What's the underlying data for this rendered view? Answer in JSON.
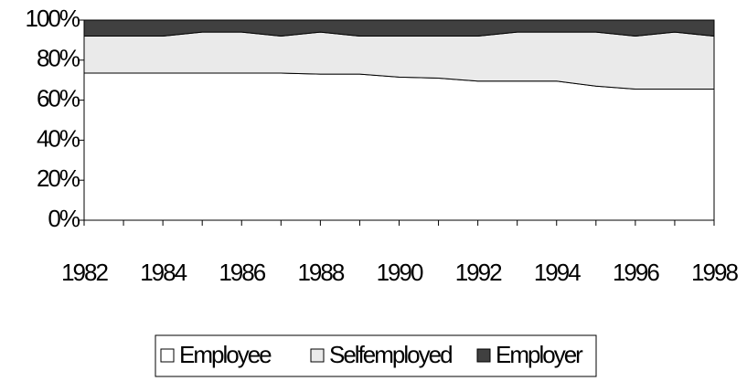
{
  "chart_data": {
    "type": "area",
    "stacked": true,
    "x": [
      1982,
      1983,
      1984,
      1985,
      1986,
      1987,
      1988,
      1989,
      1990,
      1991,
      1992,
      1993,
      1994,
      1995,
      1996,
      1997,
      1998
    ],
    "xlim": [
      1982,
      1998
    ],
    "xticks": [
      1982,
      1984,
      1986,
      1988,
      1990,
      1992,
      1994,
      1996,
      1998
    ],
    "ylim": [
      0,
      100
    ],
    "yticks": [
      {
        "value": 0,
        "label": "0%"
      },
      {
        "value": 20,
        "label": "20%"
      },
      {
        "value": 40,
        "label": "40%"
      },
      {
        "value": 60,
        "label": "60%"
      },
      {
        "value": 80,
        "label": "80%"
      },
      {
        "value": 100,
        "label": "100%"
      }
    ],
    "series": [
      {
        "name": "Employee",
        "color": "#ffffff",
        "values": [
          73.5,
          73.5,
          73.5,
          73.5,
          73.5,
          73.5,
          73,
          73,
          71.5,
          71,
          69.5,
          69.5,
          69.5,
          67,
          65.5,
          65.5,
          65.5
        ]
      },
      {
        "name": "Selfemployed",
        "color": "#eaeaea",
        "values": [
          18.5,
          18.5,
          18.5,
          20.5,
          20.5,
          18.5,
          21,
          19,
          20.5,
          21,
          22.5,
          24.5,
          24.5,
          27,
          26.5,
          28.5,
          26.5
        ]
      },
      {
        "name": "Employer",
        "color": "#404040",
        "values": [
          8,
          8,
          8,
          6,
          6,
          8,
          6,
          8,
          8,
          8,
          8,
          6,
          6,
          6,
          8,
          6,
          8
        ]
      }
    ],
    "legend": "bottom"
  }
}
